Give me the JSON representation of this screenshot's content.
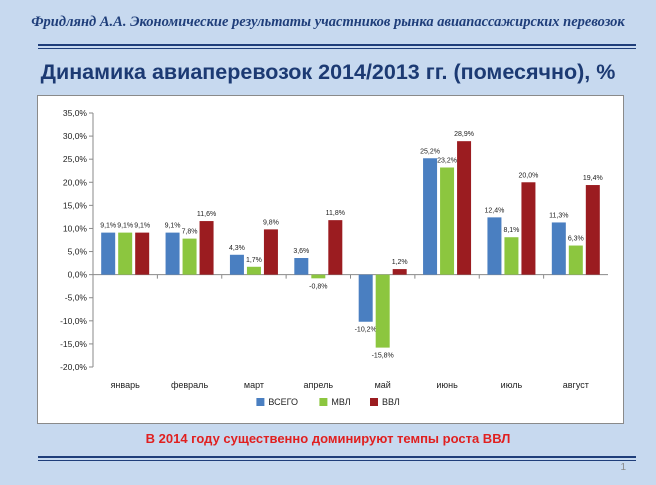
{
  "header": {
    "text": "Фридлянд А.А.   Экономические результаты участников рынка авиапассажирских перевозок"
  },
  "slide_title": "Динамика авиаперевозок 2014/2013 гг. (помесячно), %",
  "conclusion": "В 2014 году существенно доминируют темпы роста ВВЛ",
  "page_number": "1",
  "chart_data": {
    "type": "bar",
    "categories": [
      "январь",
      "февраль",
      "март",
      "апрель",
      "май",
      "июнь",
      "июль",
      "август"
    ],
    "series": [
      {
        "name": "ВСЕГО",
        "color": "#4a7fc1",
        "values": [
          9.1,
          9.1,
          4.3,
          3.6,
          -10.2,
          25.2,
          12.4,
          11.3
        ],
        "labels": [
          "9,1%",
          "9,1%",
          "4,3%",
          "3,6%",
          "-10,2%",
          "25,2%",
          "12,4%",
          "11,3%"
        ]
      },
      {
        "name": "МВЛ",
        "color": "#8cc63f",
        "values": [
          9.1,
          7.8,
          1.7,
          -0.8,
          -15.8,
          23.2,
          8.1,
          6.3
        ],
        "labels": [
          "9,1%",
          "7,8%",
          "1,7%",
          "-0,8%",
          "-15,8%",
          "23,2%",
          "8,1%",
          "6,3%"
        ]
      },
      {
        "name": "ВВЛ",
        "color": "#9b1c20",
        "values": [
          9.1,
          11.6,
          9.8,
          11.8,
          1.2,
          28.9,
          20.0,
          19.4
        ],
        "labels": [
          "9,1%",
          "11,6%",
          "9,8%",
          "11,8%",
          "1,2%",
          "28,9%",
          "20,0%",
          "19,4%"
        ]
      }
    ],
    "y_ticks": [
      35,
      30,
      25,
      20,
      15,
      10,
      5,
      0,
      -5,
      -10,
      -15,
      -20
    ],
    "y_tick_labels": [
      "35,0%",
      "30,0%",
      "25,0%",
      "20,0%",
      "15,0%",
      "10,0%",
      "5,0%",
      "0,0%",
      "-5,0%",
      "-10,0%",
      "-15,0%",
      "-20,0%"
    ],
    "ylim": [
      -20,
      35
    ],
    "grid": false,
    "legend": "bottom"
  }
}
